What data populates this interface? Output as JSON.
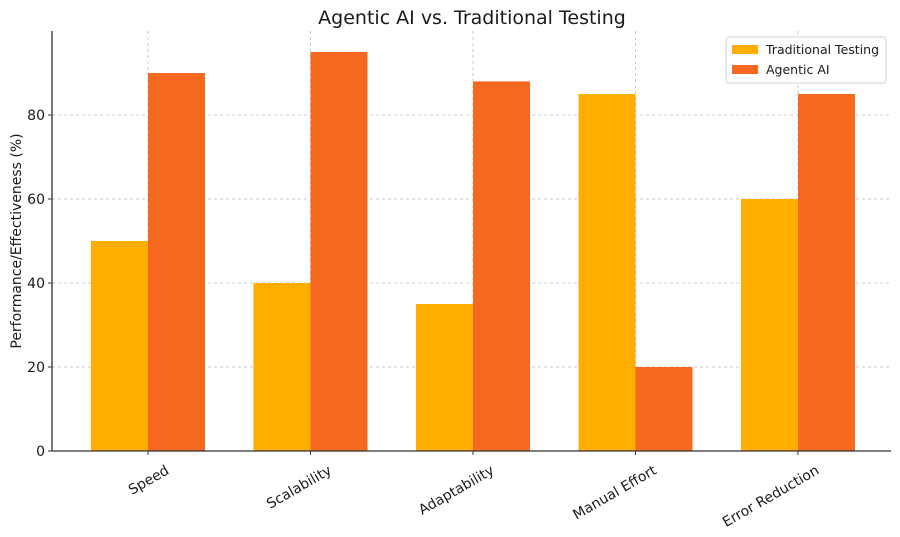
{
  "chart_data": {
    "type": "bar",
    "title": "Agentic AI vs. Traditional Testing",
    "xlabel": "",
    "ylabel": "Performance/Effectiveness (%)",
    "categories": [
      "Speed",
      "Scalability",
      "Adaptability",
      "Manual Effort",
      "Error Reduction"
    ],
    "series": [
      {
        "name": "Traditional Testing",
        "color": "#FFAE00",
        "values": [
          50,
          40,
          35,
          85,
          60
        ]
      },
      {
        "name": "Agentic AI",
        "color": "#F46820",
        "values": [
          90,
          95,
          88,
          20,
          85
        ]
      }
    ],
    "ylim": [
      0,
      100
    ],
    "yticks": [
      0,
      20,
      40,
      60,
      80
    ],
    "grid": true,
    "grid_style": "dashed",
    "legend_position": "upper right",
    "xtick_rotation": 30
  }
}
